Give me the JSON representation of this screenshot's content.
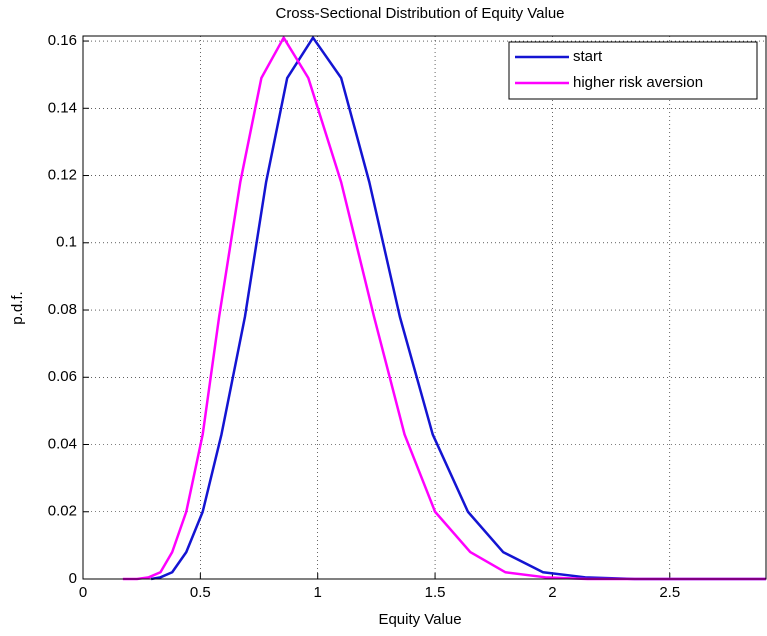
{
  "chart_data": {
    "type": "line",
    "title": "Cross-Sectional Distribution of Equity Value",
    "x_label": "Equity Value",
    "y_label": "p.d.f.",
    "xlim": [
      0,
      2.91
    ],
    "ylim": [
      0,
      0.1615
    ],
    "xticks": [
      0,
      0.5,
      1,
      1.5,
      2,
      2.5
    ],
    "yticks": [
      0,
      0.02,
      0.04,
      0.06,
      0.08,
      0.1,
      0.12,
      0.14,
      0.16
    ],
    "grid": true,
    "legend": "upper right",
    "series": [
      {
        "name": "start",
        "color": "#1414d2",
        "x": [
          0.29,
          0.33,
          0.38,
          0.44,
          0.51,
          0.59,
          0.69,
          0.78,
          0.87,
          0.98,
          1.1,
          1.22,
          1.35,
          1.49,
          1.64,
          1.79,
          1.96,
          2.14,
          2.35,
          2.57,
          2.91
        ],
        "values": [
          0,
          0.0005,
          0.002,
          0.008,
          0.02,
          0.043,
          0.078,
          0.118,
          0.149,
          0.161,
          0.149,
          0.118,
          0.078,
          0.043,
          0.02,
          0.008,
          0.002,
          0.0005,
          0,
          0,
          0
        ]
      },
      {
        "name": "higher risk aversion",
        "color": "#ff00ff",
        "x": [
          0.17,
          0.23,
          0.28,
          0.33,
          0.38,
          0.44,
          0.51,
          0.58,
          0.67,
          0.76,
          0.855,
          0.96,
          1.1,
          1.24,
          1.37,
          1.5,
          1.65,
          1.8,
          1.97,
          2.15,
          2.35,
          2.91
        ],
        "values": [
          0,
          0,
          0.0005,
          0.002,
          0.008,
          0.02,
          0.043,
          0.078,
          0.118,
          0.149,
          0.161,
          0.149,
          0.118,
          0.078,
          0.043,
          0.02,
          0.008,
          0.002,
          0.0005,
          0,
          0,
          0
        ]
      }
    ]
  }
}
